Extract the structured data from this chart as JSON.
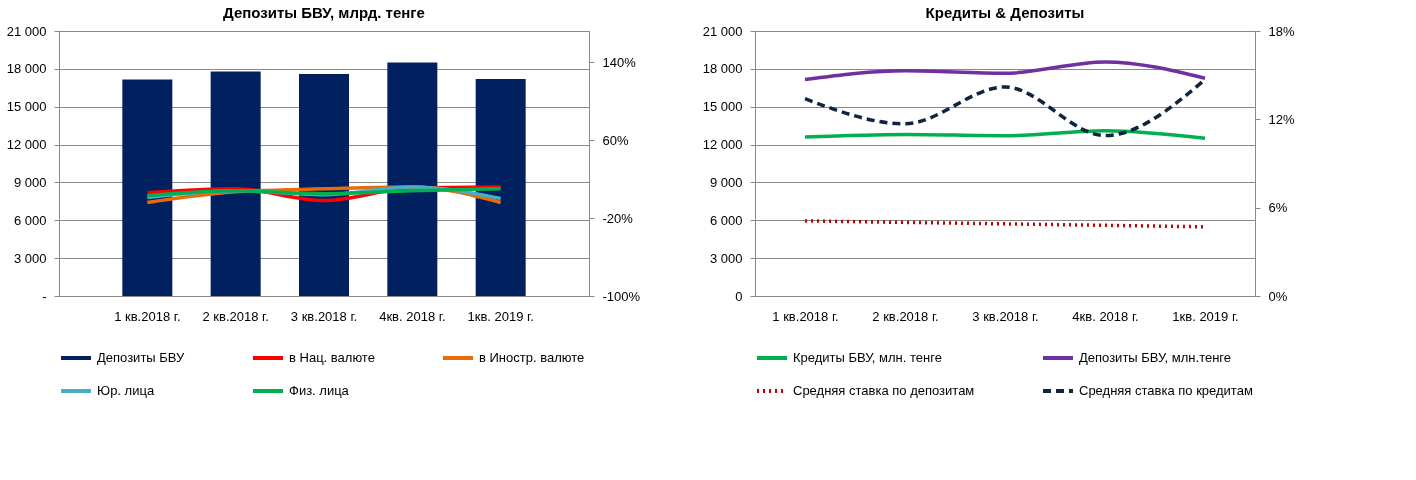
{
  "chart_data": [
    {
      "type": "bar",
      "title": "Депозиты БВУ, млрд. тенге",
      "categories": [
        "1 кв.2018 г.",
        "2 кв.2018 г.",
        "3 кв.2018 г.",
        "4кв. 2018 г.",
        "1кв. 2019 г."
      ],
      "series": [
        {
          "name": "Депозиты БВУ",
          "axis": "y",
          "color": "#002060",
          "values": [
            17150,
            17800,
            17600,
            18500,
            17200
          ]
        },
        {
          "name": "в Нац. валюте",
          "type": "line",
          "axis": "y2",
          "color": "#ff0000",
          "values": [
            6,
            10,
            -2,
            11,
            12
          ]
        },
        {
          "name": "в Иностр. валюте",
          "type": "line",
          "axis": "y2",
          "color": "#e46c0a",
          "values": [
            -4,
            7,
            10,
            12,
            -4
          ]
        },
        {
          "name": "Юр. лица",
          "type": "line",
          "axis": "y2",
          "color": "#4bacc6",
          "values": [
            1,
            8,
            4,
            12,
            0
          ]
        },
        {
          "name": "Физ. лица",
          "type": "line",
          "axis": "y2",
          "color": "#00b050",
          "values": [
            3,
            8,
            5,
            8,
            10
          ]
        }
      ],
      "ylim": [
        0,
        21000
      ],
      "yticks": [
        {
          "value": 0,
          "label": "-"
        },
        {
          "value": 3000,
          "label": "3 000"
        },
        {
          "value": 6000,
          "label": "6 000"
        },
        {
          "value": 9000,
          "label": "9 000"
        },
        {
          "value": 12000,
          "label": "12 000"
        },
        {
          "value": 15000,
          "label": "15 000"
        },
        {
          "value": 18000,
          "label": "18 000"
        },
        {
          "value": 21000,
          "label": "21 000"
        }
      ],
      "y2lim": [
        -100,
        172
      ],
      "y2ticks": [
        {
          "value": -100,
          "label": "-100%"
        },
        {
          "value": -20,
          "label": "-20%"
        },
        {
          "value": 60,
          "label": "60%"
        },
        {
          "value": 140,
          "label": "140%"
        }
      ],
      "grid": "y",
      "legend": "bottom",
      "marker": "none"
    },
    {
      "type": "line",
      "title": "Кредиты & Депозиты",
      "categories": [
        "1 кв.2018 г.",
        "2 кв.2018 г.",
        "3 кв.2018 г.",
        "4кв. 2018 г.",
        "1кв. 2019 г."
      ],
      "series": [
        {
          "name": "Кредиты БВУ, млн. тенге",
          "axis": "y",
          "color": "#00b050",
          "line_style": "solid",
          "values": [
            12600,
            12800,
            12700,
            13100,
            12500
          ]
        },
        {
          "name": "Депозиты БВУ, млн.тенге",
          "axis": "y",
          "color": "#7030a0",
          "line_style": "solid",
          "values": [
            17150,
            17850,
            17650,
            18550,
            17250
          ]
        },
        {
          "name": "Средняя ставка по депозитам",
          "axis": "y2",
          "color": "#c00000",
          "line_style": "dotted",
          "values": [
            5.1,
            5.0,
            4.9,
            4.8,
            4.7
          ]
        },
        {
          "name": "Средняя ставка по кредитам",
          "axis": "y2",
          "color": "#0f243e",
          "line_style": "dashed",
          "values": [
            13.4,
            11.7,
            14.2,
            10.9,
            14.7
          ]
        }
      ],
      "ylim": [
        0,
        21000
      ],
      "yticks": [
        0,
        {
          "value": 3000,
          "label": "3 000"
        },
        {
          "value": 6000,
          "label": "6 000"
        },
        {
          "value": 9000,
          "label": "9 000"
        },
        {
          "value": 12000,
          "label": "12 000"
        },
        {
          "value": 15000,
          "label": "15 000"
        },
        {
          "value": 18000,
          "label": "18 000"
        },
        {
          "value": 21000,
          "label": "21 000"
        }
      ],
      "y2lim": [
        0,
        18
      ],
      "y2ticks": [
        {
          "value": 0,
          "label": "0%"
        },
        {
          "value": 6,
          "label": "6%"
        },
        {
          "value": 12,
          "label": "12%"
        },
        {
          "value": 18,
          "label": "18%"
        }
      ],
      "grid": "y",
      "legend": "bottom",
      "marker": "none"
    }
  ]
}
